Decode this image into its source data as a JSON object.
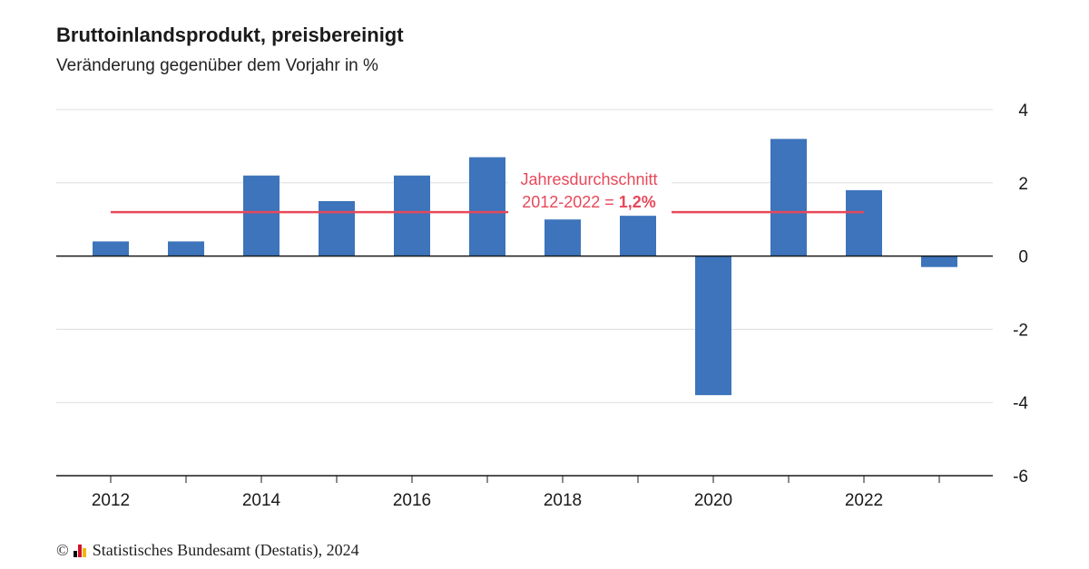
{
  "title": "Bruttoinlandsprodukt, preisbereinigt",
  "subtitle": "Veränderung gegenüber dem Vorjahr in %",
  "source": {
    "copyright_symbol": "©",
    "text": "Statistisches Bundesamt (Destatis), 2024",
    "logo_colors": [
      "#000000",
      "#d4102a",
      "#f2b600"
    ]
  },
  "colors": {
    "bar": "#3d74bb",
    "average_line": "#e8485a",
    "axis": "#1a1a1a",
    "grid": "#dddddd"
  },
  "chart_data": {
    "type": "bar",
    "categories": [
      "2012",
      "2013",
      "2014",
      "2015",
      "2016",
      "2017",
      "2018",
      "2019",
      "2020",
      "2021",
      "2022",
      "2023"
    ],
    "x_tick_labels": [
      "2012",
      "2014",
      "2016",
      "2018",
      "2020",
      "2022"
    ],
    "values": [
      0.4,
      0.4,
      2.2,
      1.5,
      2.2,
      2.7,
      1.0,
      1.1,
      -3.8,
      3.2,
      1.8,
      -0.3
    ],
    "ylim": [
      -6,
      4
    ],
    "y_ticks": [
      "4",
      "2",
      "0",
      "-2",
      "-4",
      "-6"
    ],
    "y_axis_side": "right",
    "grid": true,
    "xlabel": "",
    "ylabel": "",
    "average": {
      "value": 1.2,
      "from": "2012",
      "to": "2022",
      "label_line1": "Jahresdurchschnitt",
      "label_line2_prefix": "2012-2022 = ",
      "label_line2_value": "1,2%"
    }
  }
}
